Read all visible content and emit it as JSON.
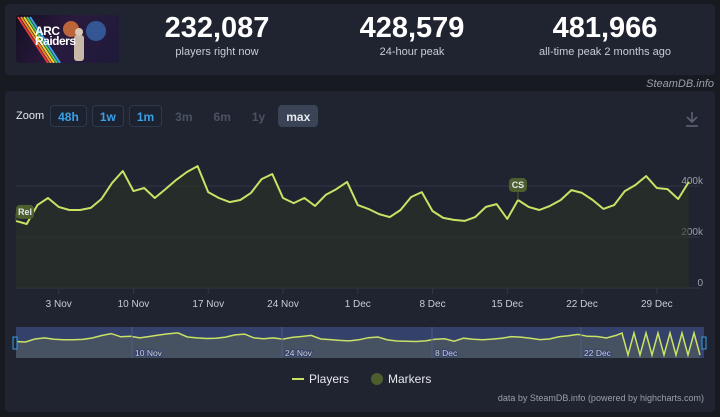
{
  "header": {
    "game_title_line1": "ARC",
    "game_title_line2": "Raiders",
    "stats": [
      {
        "value": "232,087",
        "label": "players right now"
      },
      {
        "value": "428,579",
        "label": "24-hour peak"
      },
      {
        "value": "481,966",
        "label": "all-time peak 2 months ago"
      }
    ],
    "watermark": "SteamDB.info"
  },
  "zoom": {
    "label": "Zoom",
    "buttons": [
      {
        "label": "48h",
        "state": "enabled"
      },
      {
        "label": "1w",
        "state": "enabled"
      },
      {
        "label": "1m",
        "state": "enabled"
      },
      {
        "label": "3m",
        "state": "disabled"
      },
      {
        "label": "6m",
        "state": "disabled"
      },
      {
        "label": "1y",
        "state": "disabled"
      },
      {
        "label": "max",
        "state": "selected"
      }
    ]
  },
  "icons": {
    "download": "download-icon"
  },
  "colors": {
    "line": "#c9e265",
    "marker": "#4d5f2e",
    "background": "#1f2430",
    "grid": "#2f3644",
    "navigator": "#34416a"
  },
  "legend": {
    "players": "Players",
    "markers": "Markers"
  },
  "credits": "data by SteamDB.info (powered by highcharts.com)",
  "chart_data": {
    "type": "line",
    "title": "",
    "xlabel": "",
    "ylabel": "Players",
    "ylim": [
      0,
      500000
    ],
    "y_ticks": [
      "0",
      "200k",
      "400k"
    ],
    "x_ticks": [
      "3 Nov",
      "10 Nov",
      "17 Nov",
      "24 Nov",
      "1 Dec",
      "8 Dec",
      "15 Dec",
      "22 Dec",
      "29 Dec"
    ],
    "grid": true,
    "legend_position": "bottom",
    "series": [
      {
        "name": "Players",
        "x": [
          "30 Oct",
          "31 Oct",
          "1 Nov",
          "2 Nov",
          "3 Nov",
          "4 Nov",
          "5 Nov",
          "6 Nov",
          "7 Nov",
          "8 Nov",
          "9 Nov",
          "10 Nov",
          "11 Nov",
          "12 Nov",
          "13 Nov",
          "14 Nov",
          "15 Nov",
          "16 Nov",
          "17 Nov",
          "18 Nov",
          "19 Nov",
          "20 Nov",
          "21 Nov",
          "22 Nov",
          "23 Nov",
          "24 Nov",
          "25 Nov",
          "26 Nov",
          "27 Nov",
          "28 Nov",
          "29 Nov",
          "30 Nov",
          "1 Dec",
          "2 Dec",
          "3 Dec",
          "4 Dec",
          "5 Dec",
          "6 Dec",
          "7 Dec",
          "8 Dec",
          "9 Dec",
          "10 Dec",
          "11 Dec",
          "12 Dec",
          "13 Dec",
          "14 Dec",
          "15 Dec",
          "16 Dec",
          "17 Dec",
          "18 Dec",
          "19 Dec",
          "20 Dec",
          "21 Dec",
          "22 Dec",
          "23 Dec",
          "24 Dec",
          "25 Dec",
          "26 Dec",
          "27 Dec",
          "28 Dec",
          "29 Dec",
          "30 Dec",
          "31 Dec",
          "1 Jan"
        ],
        "values": [
          263000,
          251000,
          325000,
          353000,
          318000,
          306000,
          306000,
          314000,
          349000,
          412000,
          459000,
          380000,
          392000,
          353000,
          388000,
          424000,
          455000,
          478000,
          376000,
          353000,
          337000,
          345000,
          373000,
          427000,
          447000,
          353000,
          333000,
          353000,
          322000,
          365000,
          388000,
          416000,
          325000,
          310000,
          290000,
          278000,
          306000,
          357000,
          376000,
          302000,
          275000,
          267000,
          263000,
          278000,
          318000,
          329000,
          271000,
          345000,
          318000,
          306000,
          322000,
          345000,
          384000,
          373000,
          345000,
          310000,
          325000,
          380000,
          404000,
          439000,
          392000,
          388000,
          349000,
          416000
        ]
      }
    ],
    "markers": [
      {
        "label": "Rel",
        "x": "30 Oct"
      },
      {
        "label": "CS",
        "x": "16 Dec"
      }
    ],
    "navigator": {
      "labels": [
        "10 Nov",
        "24 Nov",
        "8 Dec",
        "22 Dec"
      ]
    }
  }
}
